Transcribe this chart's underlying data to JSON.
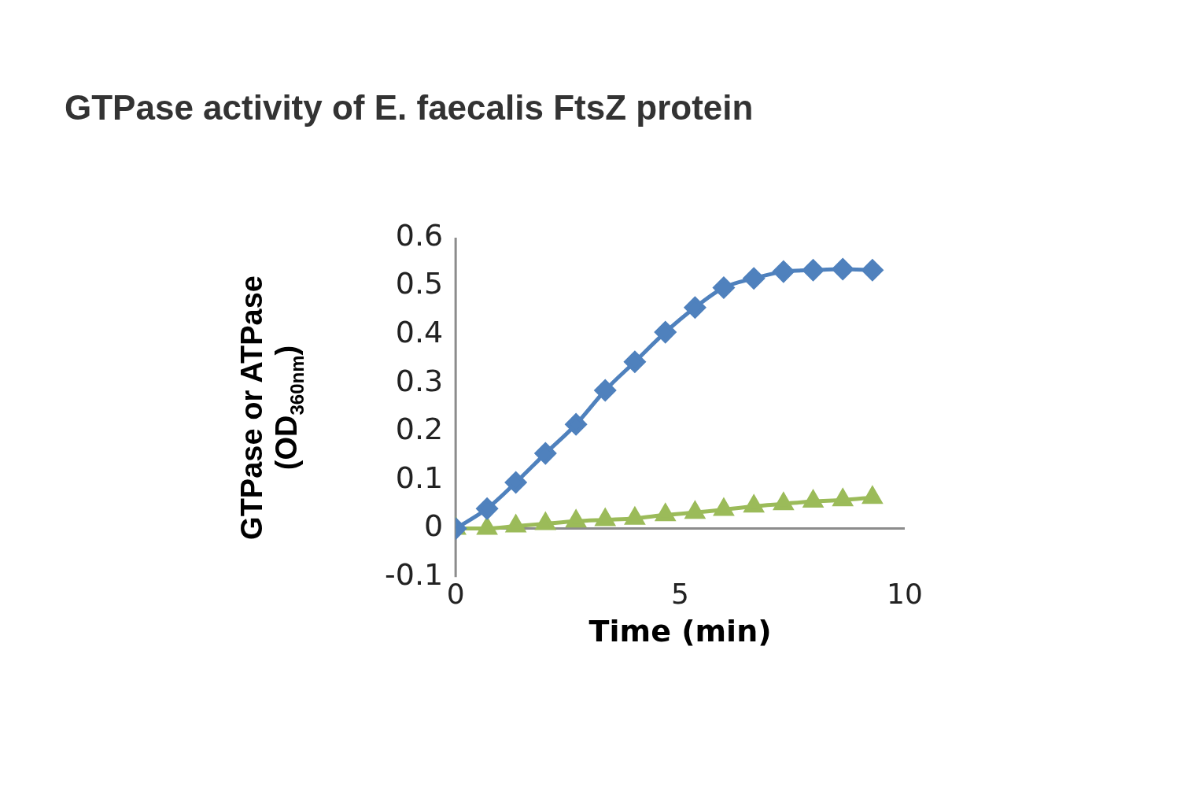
{
  "chart_data": {
    "type": "line",
    "title": "GTPase activity of E. faecalis FtsZ protein",
    "xlabel": "Time (min)",
    "ylabel": "GTPase or ATPase (OD$_{360nm}$)",
    "xlim": [
      0,
      10
    ],
    "xticks": [
      0,
      5,
      10
    ],
    "ylim": [
      -0.1,
      0.6
    ],
    "yticks": [
      -0.1,
      0,
      0.1,
      0.2,
      0.3,
      0.4,
      0.5,
      0.6
    ],
    "grid": false,
    "legend": false,
    "line_style": "solid",
    "series": [
      {
        "color": "#4f81bd",
        "marker": "diamond",
        "x": [
          0,
          0.7,
          1.34,
          2.0,
          2.68,
          3.33,
          3.99,
          4.67,
          5.33,
          5.97,
          6.64,
          7.3,
          7.96,
          8.62,
          9.28
        ],
        "values": [
          0,
          0.041,
          0.095,
          0.155,
          0.215,
          0.285,
          0.344,
          0.405,
          0.456,
          0.497,
          0.516,
          0.53,
          0.533,
          0.535,
          0.533
        ]
      },
      {
        "color": "#9bbb59",
        "marker": "triangle",
        "x": [
          0,
          0.7,
          1.34,
          2.0,
          2.68,
          3.33,
          3.99,
          4.67,
          5.33,
          5.97,
          6.64,
          7.3,
          7.96,
          8.62,
          9.28
        ],
        "values": [
          0,
          0,
          0.005,
          0.01,
          0.015,
          0.018,
          0.021,
          0.028,
          0.033,
          0.039,
          0.046,
          0.051,
          0.056,
          0.059,
          0.064
        ]
      }
    ]
  }
}
